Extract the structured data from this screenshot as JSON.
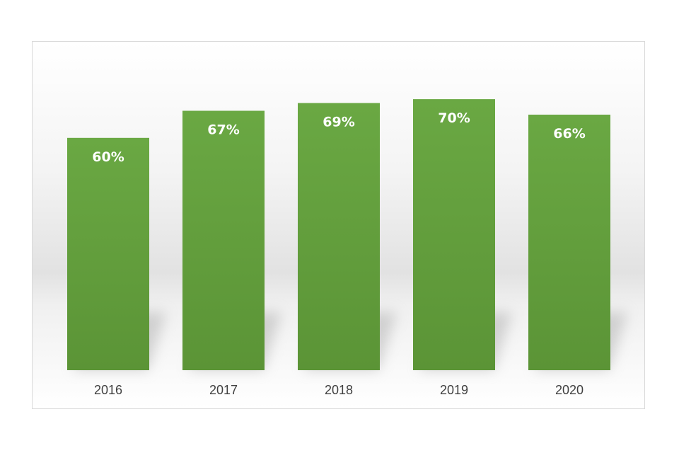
{
  "chart_data": {
    "type": "bar",
    "categories": [
      "2016",
      "2017",
      "2018",
      "2019",
      "2020"
    ],
    "values": [
      60,
      67,
      69,
      70,
      66
    ],
    "data_labels": [
      "60%",
      "67%",
      "69%",
      "70%",
      "66%"
    ],
    "title": "",
    "xlabel": "",
    "ylabel": "",
    "ylim": [
      0,
      100
    ],
    "grid": false,
    "legend": "none",
    "bar_color": "#6aa843",
    "bar_color_dark": "#5b9436",
    "label_color": "#ffffff",
    "tick_color": "#404040"
  }
}
